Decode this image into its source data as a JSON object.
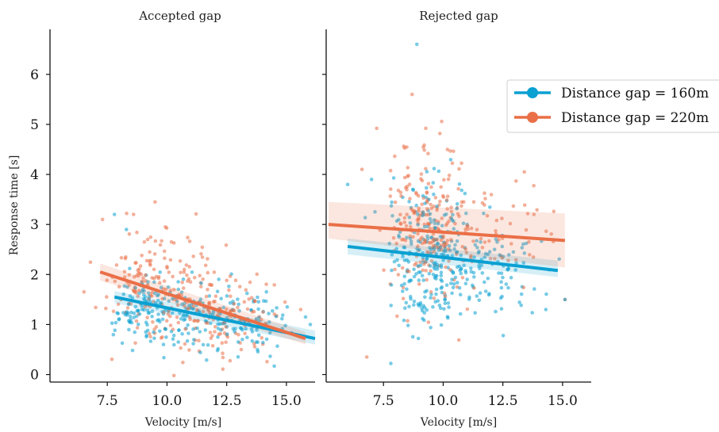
{
  "chart_data": {
    "type": "scatter",
    "ylabel": "Response time [s]",
    "xlabel": "Velocity [m/s]",
    "x_ticks": [
      7.5,
      10.0,
      12.5,
      15.0
    ],
    "y_ticks": [
      0,
      1,
      2,
      3,
      4,
      5,
      6
    ],
    "xlim": [
      5.1,
      16.2
    ],
    "ylim": [
      -0.15,
      6.9
    ],
    "colors": {
      "Distance gap = 160m": "#0aa0d2",
      "Distance gap = 220m": "#ea6f47"
    },
    "legend": {
      "placement": "right",
      "entries": [
        "Distance gap = 160m",
        "Distance gap = 220m"
      ]
    },
    "panels": [
      {
        "title": "Accepted gap",
        "series": [
          {
            "name": "Distance gap = 160m",
            "clusters": [
              {
                "cx": 9.2,
                "cy": 1.35,
                "sx": 0.8,
                "sy": 0.35,
                "n": 110,
                "seed": 11
              },
              {
                "cx": 11.3,
                "cy": 1.1,
                "sx": 1.1,
                "sy": 0.33,
                "n": 110,
                "seed": 12
              },
              {
                "cx": 13.6,
                "cy": 0.95,
                "sx": 0.9,
                "sy": 0.3,
                "n": 60,
                "seed": 13
              }
            ],
            "extra": [
              [
                7.8,
                3.2
              ],
              [
                8.3,
                2.9
              ],
              [
                16.0,
                1.0
              ],
              [
                15.8,
                1.15
              ]
            ],
            "fit": {
              "x": [
                7.8,
                16.2
              ],
              "y": [
                1.55,
                0.72
              ]
            },
            "band": {
              "x": [
                7.8,
                16.2
              ],
              "lower": [
                1.43,
                0.6
              ],
              "upper": [
                1.67,
                0.88
              ]
            }
          },
          {
            "name": "Distance gap = 220m",
            "clusters": [
              {
                "cx": 9.3,
                "cy": 1.85,
                "sx": 0.9,
                "sy": 0.55,
                "n": 130,
                "seed": 21
              },
              {
                "cx": 11.2,
                "cy": 1.35,
                "sx": 0.9,
                "sy": 0.5,
                "n": 110,
                "seed": 22
              },
              {
                "cx": 13.3,
                "cy": 1.0,
                "sx": 0.9,
                "sy": 0.35,
                "n": 60,
                "seed": 23
              }
            ],
            "extra": [
              [
                9.5,
                3.45
              ],
              [
                7.3,
                3.1
              ],
              [
                8.6,
                3.2
              ],
              [
                15.6,
                1.3
              ]
            ],
            "fit": {
              "x": [
                7.2,
                15.8
              ],
              "y": [
                2.05,
                0.72
              ]
            },
            "band": {
              "x": [
                7.2,
                15.8
              ],
              "lower": [
                1.88,
                0.6
              ],
              "upper": [
                2.22,
                0.85
              ]
            }
          }
        ]
      },
      {
        "title": "Rejected gap",
        "series": [
          {
            "name": "Distance gap = 160m",
            "clusters": [
              {
                "cx": 9.2,
                "cy": 2.4,
                "sx": 0.85,
                "sy": 0.8,
                "n": 200,
                "seed": 31
              },
              {
                "cx": 10.8,
                "cy": 2.2,
                "sx": 1.0,
                "sy": 0.55,
                "n": 110,
                "seed": 32
              },
              {
                "cx": 12.7,
                "cy": 2.1,
                "sx": 1.0,
                "sy": 0.45,
                "n": 40,
                "seed": 33
              }
            ],
            "extra": [
              [
                8.9,
                6.6
              ],
              [
                7.0,
                3.9
              ],
              [
                6.0,
                3.8
              ],
              [
                14.3,
                1.3
              ],
              [
                15.1,
                1.5
              ]
            ],
            "fit": {
              "x": [
                6.0,
                14.8
              ],
              "y": [
                2.56,
                2.08
              ]
            },
            "band": {
              "x": [
                6.0,
                14.8
              ],
              "lower": [
                2.4,
                1.95
              ],
              "upper": [
                2.72,
                2.28
              ]
            }
          },
          {
            "name": "Distance gap = 220m",
            "clusters": [
              {
                "cx": 9.1,
                "cy": 3.1,
                "sx": 0.75,
                "sy": 0.85,
                "n": 180,
                "seed": 41
              },
              {
                "cx": 10.8,
                "cy": 2.7,
                "sx": 1.0,
                "sy": 0.6,
                "n": 70,
                "seed": 42
              },
              {
                "cx": 12.8,
                "cy": 2.7,
                "sx": 1.1,
                "sy": 0.5,
                "n": 25,
                "seed": 43
              }
            ],
            "extra": [
              [
                8.7,
                5.6
              ],
              [
                13.4,
                4.05
              ],
              [
                15.1,
                1.5
              ],
              [
                6.6,
                4.1
              ],
              [
                6.8,
                0.35
              ]
            ],
            "fit": {
              "x": [
                5.2,
                15.1
              ],
              "y": [
                3.0,
                2.68
              ]
            },
            "band": {
              "x": [
                5.2,
                15.1
              ],
              "lower": [
                2.72,
                2.14
              ],
              "upper": [
                3.45,
                3.22
              ]
            }
          }
        ]
      }
    ]
  }
}
